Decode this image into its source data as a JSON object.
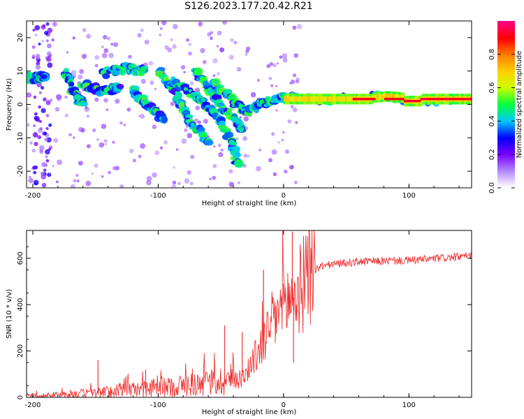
{
  "title": "S126.2023.177.20.42.R21",
  "chart_data": [
    {
      "type": "heatmap",
      "title": "S126.2023.177.20.42.R21",
      "xlabel": "Height of straight line (km)",
      "ylabel": "Frequency (Hz)",
      "xlim": [
        -205,
        150
      ],
      "ylim": [
        -25,
        25
      ],
      "xticks": [
        -200,
        -100,
        0,
        100
      ],
      "yticks": [
        -20,
        -10,
        0,
        10,
        20
      ],
      "colorbar": {
        "label": "Normalized spectral amplitude",
        "range": [
          0,
          1
        ],
        "ticks": [
          0.0,
          0.2,
          0.4,
          0.6,
          0.8
        ],
        "colors": [
          "#ffffff",
          "#b388ff",
          "#7a00ff",
          "#0000ff",
          "#00c8ff",
          "#00ff40",
          "#c8ff00",
          "#ffd000",
          "#ff8000",
          "#ff0000",
          "#ff0080"
        ]
      },
      "ridges": [
        {
          "name": "",
          "points": [
            [
              -205,
              8
            ],
            [
              -195,
              8
            ],
            [
              -190,
              9
            ]
          ]
        },
        {
          "name": "",
          "points": [
            [
              -175,
              10
            ],
            [
              -165,
              2
            ],
            [
              -160,
              0
            ]
          ]
        },
        {
          "name": "",
          "points": [
            [
              -160,
              6
            ],
            [
              -145,
              4
            ],
            [
              -130,
              5
            ]
          ]
        },
        {
          "name": "",
          "points": [
            [
              -145,
              9
            ],
            [
              -125,
              11
            ],
            [
              -110,
              10
            ]
          ]
        },
        {
          "name": "",
          "points": [
            [
              -120,
              4
            ],
            [
              -110,
              0
            ],
            [
              -95,
              -5
            ]
          ]
        },
        {
          "name": "",
          "points": [
            [
              -100,
              10
            ],
            [
              -85,
              2
            ],
            [
              -75,
              -5
            ],
            [
              -60,
              -11
            ]
          ]
        },
        {
          "name": "",
          "points": [
            [
              -90,
              7
            ],
            [
              -75,
              4
            ],
            [
              -62,
              0
            ],
            [
              -50,
              -5
            ],
            [
              -40,
              -12
            ],
            [
              -37,
              -18
            ]
          ]
        },
        {
          "name": "",
          "points": [
            [
              -70,
              10
            ],
            [
              -60,
              5
            ],
            [
              -50,
              0
            ],
            [
              -38,
              -5
            ],
            [
              -33,
              -7
            ]
          ]
        },
        {
          "name": "",
          "points": [
            [
              -55,
              6
            ],
            [
              -42,
              2
            ],
            [
              -35,
              -1
            ],
            [
              -28,
              -2
            ],
            [
              -20,
              0
            ],
            [
              -10,
              1
            ],
            [
              0,
              2
            ],
            [
              10,
              2
            ],
            [
              40,
              1.5
            ],
            [
              80,
              2.5
            ],
            [
              95,
              1
            ],
            [
              150,
              1.5
            ]
          ]
        }
      ],
      "band": {
        "x": [
          0,
          150
        ],
        "center_hz": 1.6,
        "amplitude": 0.8
      }
    },
    {
      "type": "line",
      "xlabel": "Height of straight line (km)",
      "ylabel": "SNR (10 * v/v)",
      "xlim": [
        -205,
        150
      ],
      "ylim": [
        0,
        720
      ],
      "xticks": [
        -200,
        -100,
        0,
        100
      ],
      "yticks": [
        0,
        200,
        400,
        600
      ],
      "color": "#ee3333",
      "trend": {
        "x": [
          -205,
          -190,
          -170,
          -150,
          -130,
          -110,
          -90,
          -70,
          -50,
          -40,
          -35,
          -30,
          -25,
          -20,
          -15,
          -10,
          -5,
          0,
          5,
          10,
          15,
          20,
          25,
          30,
          40,
          50,
          60,
          80,
          100,
          120,
          150
        ],
        "y": [
          5,
          8,
          14,
          20,
          28,
          38,
          45,
          58,
          70,
          80,
          85,
          100,
          150,
          200,
          250,
          310,
          360,
          400,
          420,
          440,
          480,
          520,
          550,
          565,
          575,
          580,
          585,
          588,
          590,
          598,
          610
        ]
      },
      "spikes": [
        {
          "x": -148,
          "y": 160
        },
        {
          "x": -110,
          "y": 120
        },
        {
          "x": -47,
          "y": 310
        },
        {
          "x": -33,
          "y": 280
        },
        {
          "x": -16,
          "y": 550
        },
        {
          "x": 0,
          "y": 490
        },
        {
          "x": 7,
          "y": 715
        },
        {
          "x": 8,
          "y": 150
        }
      ]
    }
  ]
}
